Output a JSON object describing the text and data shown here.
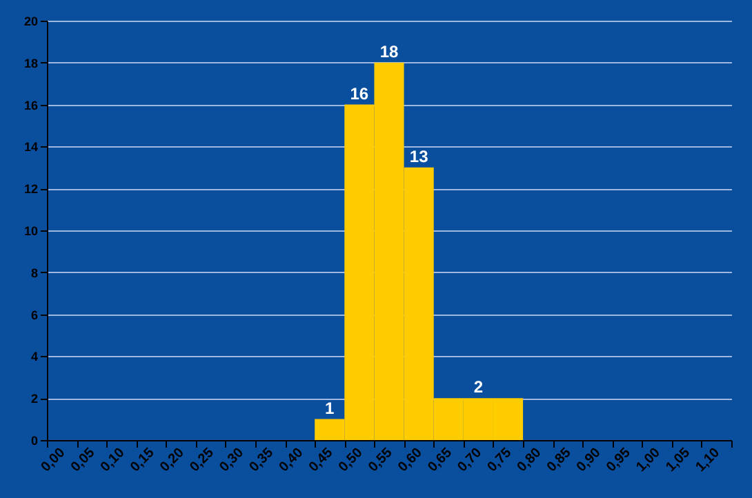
{
  "chart_data": {
    "type": "bar",
    "categories": [
      "0,00",
      "0,05",
      "0,10",
      "0,15",
      "0,20",
      "0,25",
      "0,30",
      "0,35",
      "0,40",
      "0,45",
      "0,50",
      "0,55",
      "0,60",
      "0,65",
      "0,70",
      "0,75",
      "0,80",
      "0,85",
      "0,90",
      "0,95",
      "1,00",
      "1,05",
      "1,10"
    ],
    "values": [
      0,
      0,
      0,
      0,
      0,
      0,
      0,
      0,
      0,
      1,
      16,
      18,
      13,
      2,
      2,
      2,
      0,
      0,
      0,
      0,
      0,
      0,
      0
    ],
    "value_labels": [
      null,
      null,
      null,
      null,
      null,
      null,
      null,
      null,
      null,
      "1",
      "16",
      "18",
      "13",
      null,
      "2",
      null,
      null,
      null,
      null,
      null,
      null,
      null,
      null
    ],
    "color": "#ffcc00",
    "ylim": [
      0,
      20
    ],
    "yticks": [
      0,
      2,
      4,
      6,
      8,
      10,
      12,
      14,
      16,
      18,
      20
    ],
    "grid": "y"
  }
}
